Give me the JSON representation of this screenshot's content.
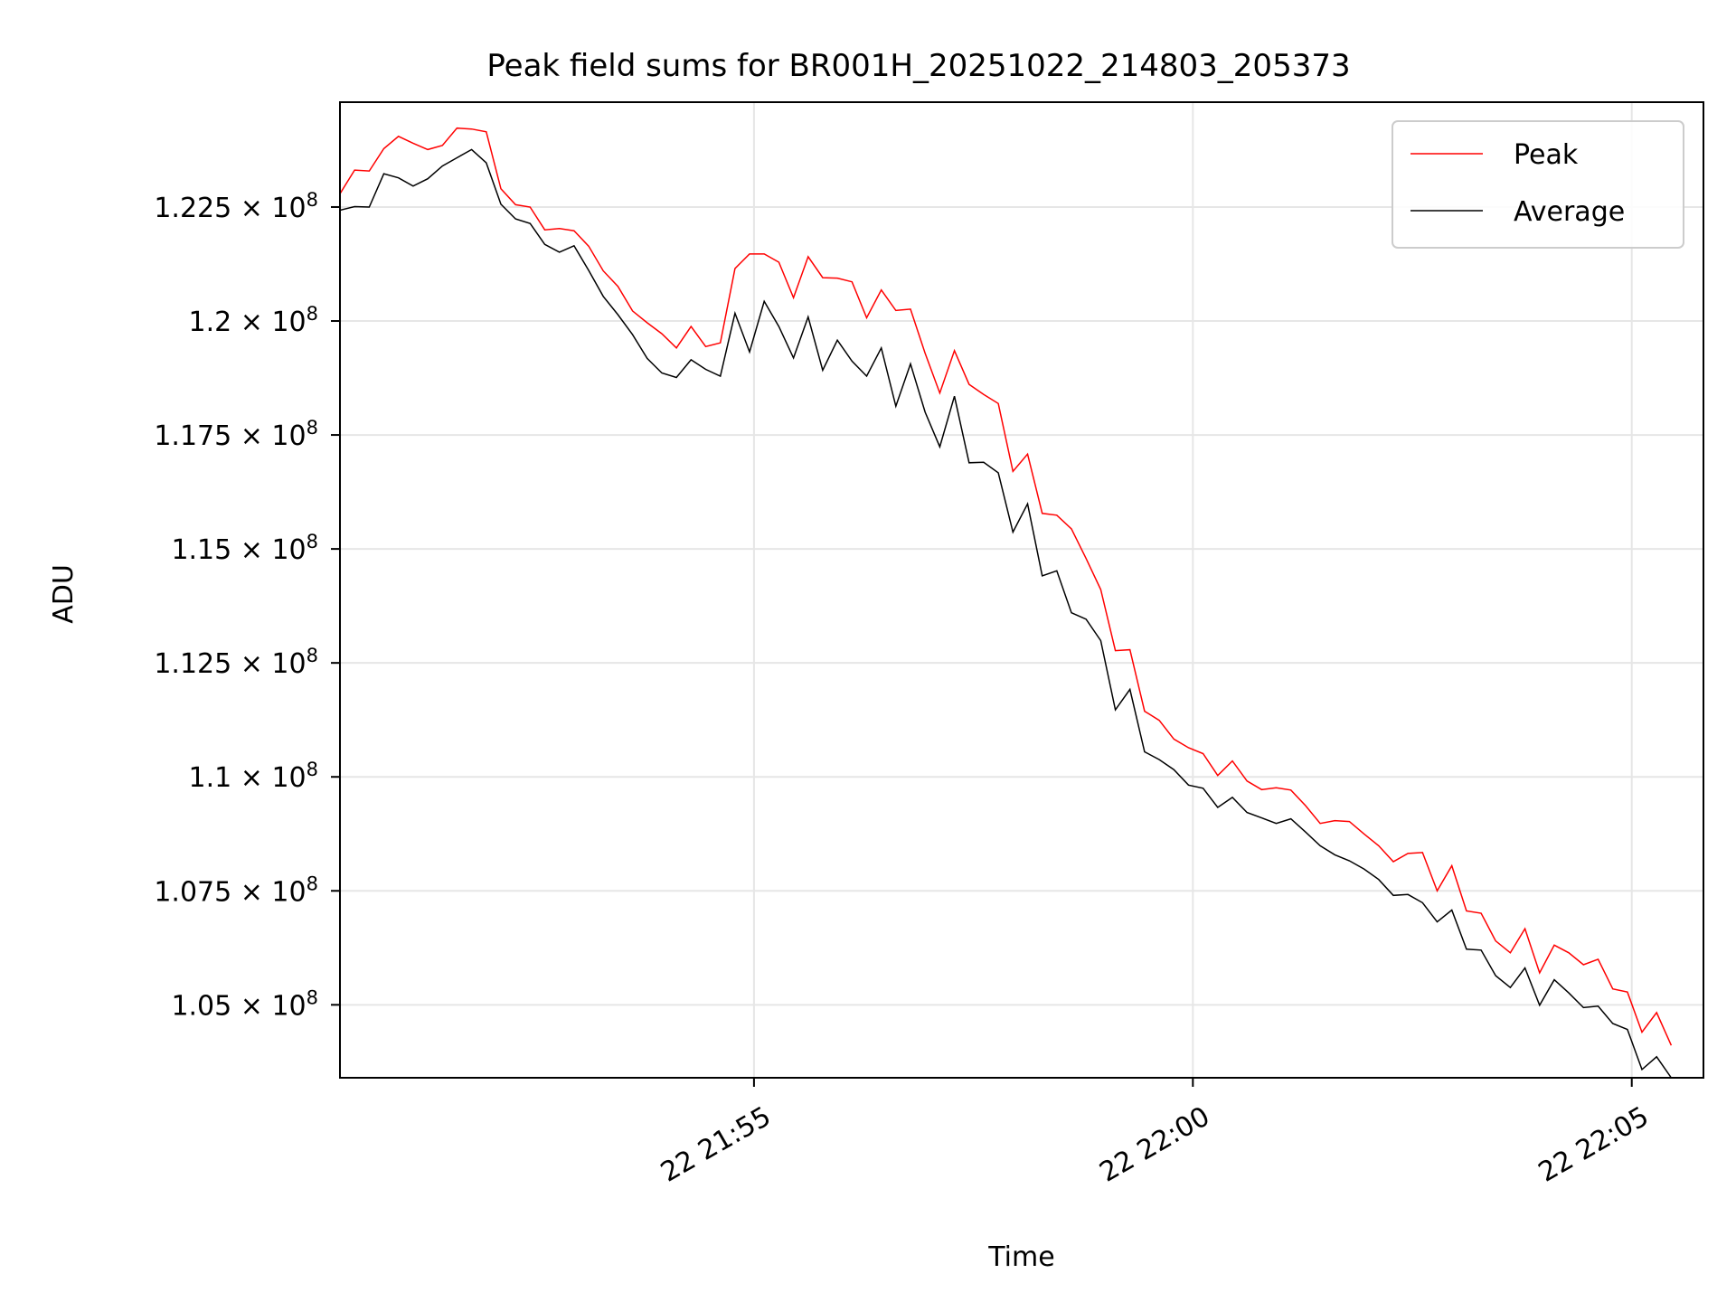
{
  "chart_data": {
    "type": "line",
    "title": "Peak field sums for BR001H_20251022_214803_205373",
    "xlabel": "Time",
    "ylabel": "ADU",
    "grid": true,
    "legend_position": "top-right",
    "xlim": [
      "2025-10-22 21:50:17",
      "2025-10-22 22:05:49"
    ],
    "ylim": [
      103400000,
      124800000
    ],
    "x_ticks": [
      {
        "value": "2025-10-22 21:55:00",
        "label": "22 21:55"
      },
      {
        "value": "2025-10-22 22:00:00",
        "label": "22 22:00"
      },
      {
        "value": "2025-10-22 22:05:00",
        "label": "22 22:05"
      }
    ],
    "y_ticks": [
      {
        "value": 105000000,
        "mantissa": "1.05"
      },
      {
        "value": 107500000,
        "mantissa": "1.075"
      },
      {
        "value": 110000000,
        "mantissa": "1.1"
      },
      {
        "value": 112500000,
        "mantissa": "1.125"
      },
      {
        "value": 115000000,
        "mantissa": "1.15"
      },
      {
        "value": 117500000,
        "mantissa": "1.175"
      },
      {
        "value": 120000000,
        "mantissa": "1.2"
      },
      {
        "value": 122500000,
        "mantissa": "1.225"
      }
    ],
    "y_tick_multiplier": "× 10",
    "y_tick_exponent": "8",
    "series": [
      {
        "name": "Peak",
        "color": "#ff0000",
        "points": [
          [
            "2025-10-22 21:50:17",
            122790000
          ],
          [
            "2025-10-22 21:50:27",
            123310000
          ],
          [
            "2025-10-22 21:50:37",
            123290000
          ],
          [
            "2025-10-22 21:50:47",
            123780000
          ],
          [
            "2025-10-22 21:50:57",
            124050000
          ],
          [
            "2025-10-22 21:51:07",
            123900000
          ],
          [
            "2025-10-22 21:51:17",
            123760000
          ],
          [
            "2025-10-22 21:51:27",
            123850000
          ],
          [
            "2025-10-22 21:51:37",
            124230000
          ],
          [
            "2025-10-22 21:51:47",
            124210000
          ],
          [
            "2025-10-22 21:51:57",
            124150000
          ],
          [
            "2025-10-22 21:52:07",
            122900000
          ],
          [
            "2025-10-22 21:52:17",
            122550000
          ],
          [
            "2025-10-22 21:52:27",
            122500000
          ],
          [
            "2025-10-22 21:52:37",
            122000000
          ],
          [
            "2025-10-22 21:52:47",
            122030000
          ],
          [
            "2025-10-22 21:52:57",
            121980000
          ],
          [
            "2025-10-22 21:53:07",
            121640000
          ],
          [
            "2025-10-22 21:53:17",
            121100000
          ],
          [
            "2025-10-22 21:53:27",
            120760000
          ],
          [
            "2025-10-22 21:53:37",
            120220000
          ],
          [
            "2025-10-22 21:53:47",
            119960000
          ],
          [
            "2025-10-22 21:53:57",
            119720000
          ],
          [
            "2025-10-22 21:54:07",
            119410000
          ],
          [
            "2025-10-22 21:54:17",
            119880000
          ],
          [
            "2025-10-22 21:54:27",
            119440000
          ],
          [
            "2025-10-22 21:54:37",
            119520000
          ],
          [
            "2025-10-22 21:54:47",
            121150000
          ],
          [
            "2025-10-22 21:54:57",
            121470000
          ],
          [
            "2025-10-22 21:55:07",
            121470000
          ],
          [
            "2025-10-22 21:55:17",
            121290000
          ],
          [
            "2025-10-22 21:55:27",
            120510000
          ],
          [
            "2025-10-22 21:55:37",
            121410000
          ],
          [
            "2025-10-22 21:55:47",
            120950000
          ],
          [
            "2025-10-22 21:55:57",
            120940000
          ],
          [
            "2025-10-22 21:56:07",
            120860000
          ],
          [
            "2025-10-22 21:56:17",
            120070000
          ],
          [
            "2025-10-22 21:56:27",
            120680000
          ],
          [
            "2025-10-22 21:56:37",
            120230000
          ],
          [
            "2025-10-22 21:56:47",
            120260000
          ],
          [
            "2025-10-22 21:56:57",
            119290000
          ],
          [
            "2025-10-22 21:57:07",
            118420000
          ],
          [
            "2025-10-22 21:57:17",
            119350000
          ],
          [
            "2025-10-22 21:57:27",
            118610000
          ],
          [
            "2025-10-22 21:57:37",
            118390000
          ],
          [
            "2025-10-22 21:57:47",
            118190000
          ],
          [
            "2025-10-22 21:57:57",
            116700000
          ],
          [
            "2025-10-22 21:58:07",
            117080000
          ],
          [
            "2025-10-22 21:58:17",
            115780000
          ],
          [
            "2025-10-22 21:58:27",
            115740000
          ],
          [
            "2025-10-22 21:58:37",
            115440000
          ],
          [
            "2025-10-22 21:58:47",
            114790000
          ],
          [
            "2025-10-22 21:58:57",
            114110000
          ],
          [
            "2025-10-22 21:59:07",
            112770000
          ],
          [
            "2025-10-22 21:59:17",
            112790000
          ],
          [
            "2025-10-22 21:59:27",
            111440000
          ],
          [
            "2025-10-22 21:59:37",
            111240000
          ],
          [
            "2025-10-22 21:59:47",
            110830000
          ],
          [
            "2025-10-22 21:59:57",
            110640000
          ],
          [
            "2025-10-22 22:00:07",
            110510000
          ],
          [
            "2025-10-22 22:00:17",
            110030000
          ],
          [
            "2025-10-22 22:00:27",
            110350000
          ],
          [
            "2025-10-22 22:00:37",
            109910000
          ],
          [
            "2025-10-22 22:00:47",
            109720000
          ],
          [
            "2025-10-22 22:00:57",
            109760000
          ],
          [
            "2025-10-22 22:01:07",
            109710000
          ],
          [
            "2025-10-22 22:01:17",
            109370000
          ],
          [
            "2025-10-22 22:01:27",
            108980000
          ],
          [
            "2025-10-22 22:01:37",
            109040000
          ],
          [
            "2025-10-22 22:01:47",
            109020000
          ],
          [
            "2025-10-22 22:01:57",
            108750000
          ],
          [
            "2025-10-22 22:02:07",
            108490000
          ],
          [
            "2025-10-22 22:02:17",
            108140000
          ],
          [
            "2025-10-22 22:02:27",
            108320000
          ],
          [
            "2025-10-22 22:02:37",
            108340000
          ],
          [
            "2025-10-22 22:02:47",
            107500000
          ],
          [
            "2025-10-22 22:02:57",
            108050000
          ],
          [
            "2025-10-22 22:03:07",
            107060000
          ],
          [
            "2025-10-22 22:03:17",
            107010000
          ],
          [
            "2025-10-22 22:03:27",
            106400000
          ],
          [
            "2025-10-22 22:03:37",
            106140000
          ],
          [
            "2025-10-22 22:03:47",
            106670000
          ],
          [
            "2025-10-22 22:03:57",
            105700000
          ],
          [
            "2025-10-22 22:04:07",
            106310000
          ],
          [
            "2025-10-22 22:04:17",
            106140000
          ],
          [
            "2025-10-22 22:04:27",
            105880000
          ],
          [
            "2025-10-22 22:04:37",
            106000000
          ],
          [
            "2025-10-22 22:04:47",
            105350000
          ],
          [
            "2025-10-22 22:04:57",
            105280000
          ],
          [
            "2025-10-22 22:05:07",
            104400000
          ],
          [
            "2025-10-22 22:05:17",
            104830000
          ],
          [
            "2025-10-22 22:05:27",
            104110000
          ]
        ]
      },
      {
        "name": "Average",
        "color": "#000000",
        "points": [
          [
            "2025-10-22 21:50:17",
            122430000
          ],
          [
            "2025-10-22 21:50:27",
            122510000
          ],
          [
            "2025-10-22 21:50:37",
            122500000
          ],
          [
            "2025-10-22 21:50:47",
            123230000
          ],
          [
            "2025-10-22 21:50:57",
            123140000
          ],
          [
            "2025-10-22 21:51:07",
            122960000
          ],
          [
            "2025-10-22 21:51:17",
            123120000
          ],
          [
            "2025-10-22 21:51:27",
            123400000
          ],
          [
            "2025-10-22 21:51:37",
            123580000
          ],
          [
            "2025-10-22 21:51:47",
            123760000
          ],
          [
            "2025-10-22 21:51:57",
            123470000
          ],
          [
            "2025-10-22 21:52:07",
            122560000
          ],
          [
            "2025-10-22 21:52:17",
            122240000
          ],
          [
            "2025-10-22 21:52:27",
            122140000
          ],
          [
            "2025-10-22 21:52:37",
            121680000
          ],
          [
            "2025-10-22 21:52:47",
            121510000
          ],
          [
            "2025-10-22 21:52:57",
            121650000
          ],
          [
            "2025-10-22 21:53:07",
            121110000
          ],
          [
            "2025-10-22 21:53:17",
            120540000
          ],
          [
            "2025-10-22 21:53:27",
            120140000
          ],
          [
            "2025-10-22 21:53:37",
            119700000
          ],
          [
            "2025-10-22 21:53:47",
            119180000
          ],
          [
            "2025-10-22 21:53:57",
            118860000
          ],
          [
            "2025-10-22 21:54:07",
            118760000
          ],
          [
            "2025-10-22 21:54:17",
            119150000
          ],
          [
            "2025-10-22 21:54:27",
            118940000
          ],
          [
            "2025-10-22 21:54:37",
            118790000
          ],
          [
            "2025-10-22 21:54:47",
            120170000
          ],
          [
            "2025-10-22 21:54:57",
            119320000
          ],
          [
            "2025-10-22 21:55:07",
            120430000
          ],
          [
            "2025-10-22 21:55:17",
            119880000
          ],
          [
            "2025-10-22 21:55:27",
            119190000
          ],
          [
            "2025-10-22 21:55:37",
            120090000
          ],
          [
            "2025-10-22 21:55:47",
            118920000
          ],
          [
            "2025-10-22 21:55:57",
            119580000
          ],
          [
            "2025-10-22 21:56:07",
            119120000
          ],
          [
            "2025-10-22 21:56:17",
            118790000
          ],
          [
            "2025-10-22 21:56:27",
            119410000
          ],
          [
            "2025-10-22 21:56:37",
            118130000
          ],
          [
            "2025-10-22 21:56:47",
            119060000
          ],
          [
            "2025-10-22 21:56:57",
            118000000
          ],
          [
            "2025-10-22 21:57:07",
            117240000
          ],
          [
            "2025-10-22 21:57:17",
            118350000
          ],
          [
            "2025-10-22 21:57:27",
            116890000
          ],
          [
            "2025-10-22 21:57:37",
            116900000
          ],
          [
            "2025-10-22 21:57:47",
            116670000
          ],
          [
            "2025-10-22 21:57:57",
            115370000
          ],
          [
            "2025-10-22 21:58:07",
            115990000
          ],
          [
            "2025-10-22 21:58:17",
            114410000
          ],
          [
            "2025-10-22 21:58:27",
            114520000
          ],
          [
            "2025-10-22 21:58:37",
            113600000
          ],
          [
            "2025-10-22 21:58:47",
            113460000
          ],
          [
            "2025-10-22 21:58:57",
            112990000
          ],
          [
            "2025-10-22 21:59:07",
            111470000
          ],
          [
            "2025-10-22 21:59:17",
            111920000
          ],
          [
            "2025-10-22 21:59:27",
            110550000
          ],
          [
            "2025-10-22 21:59:37",
            110380000
          ],
          [
            "2025-10-22 21:59:47",
            110160000
          ],
          [
            "2025-10-22 21:59:57",
            109820000
          ],
          [
            "2025-10-22 22:00:07",
            109750000
          ],
          [
            "2025-10-22 22:00:17",
            109330000
          ],
          [
            "2025-10-22 22:00:27",
            109550000
          ],
          [
            "2025-10-22 22:00:37",
            109220000
          ],
          [
            "2025-10-22 22:00:47",
            109100000
          ],
          [
            "2025-10-22 22:00:57",
            108980000
          ],
          [
            "2025-10-22 22:01:07",
            109080000
          ],
          [
            "2025-10-22 22:01:17",
            108790000
          ],
          [
            "2025-10-22 22:01:27",
            108490000
          ],
          [
            "2025-10-22 22:01:37",
            108290000
          ],
          [
            "2025-10-22 22:01:47",
            108160000
          ],
          [
            "2025-10-22 22:01:57",
            107980000
          ],
          [
            "2025-10-22 22:02:07",
            107750000
          ],
          [
            "2025-10-22 22:02:17",
            107400000
          ],
          [
            "2025-10-22 22:02:27",
            107420000
          ],
          [
            "2025-10-22 22:02:37",
            107240000
          ],
          [
            "2025-10-22 22:02:47",
            106820000
          ],
          [
            "2025-10-22 22:02:57",
            107080000
          ],
          [
            "2025-10-22 22:03:07",
            106220000
          ],
          [
            "2025-10-22 22:03:17",
            106200000
          ],
          [
            "2025-10-22 22:03:27",
            105640000
          ],
          [
            "2025-10-22 22:03:37",
            105380000
          ],
          [
            "2025-10-22 22:03:47",
            105810000
          ],
          [
            "2025-10-22 22:03:57",
            104990000
          ],
          [
            "2025-10-22 22:04:07",
            105550000
          ],
          [
            "2025-10-22 22:04:17",
            105260000
          ],
          [
            "2025-10-22 22:04:27",
            104940000
          ],
          [
            "2025-10-22 22:04:37",
            104970000
          ],
          [
            "2025-10-22 22:04:47",
            104590000
          ],
          [
            "2025-10-22 22:04:57",
            104460000
          ],
          [
            "2025-10-22 22:05:07",
            103580000
          ],
          [
            "2025-10-22 22:05:17",
            103860000
          ],
          [
            "2025-10-22 22:05:27",
            103400000
          ]
        ]
      }
    ]
  }
}
